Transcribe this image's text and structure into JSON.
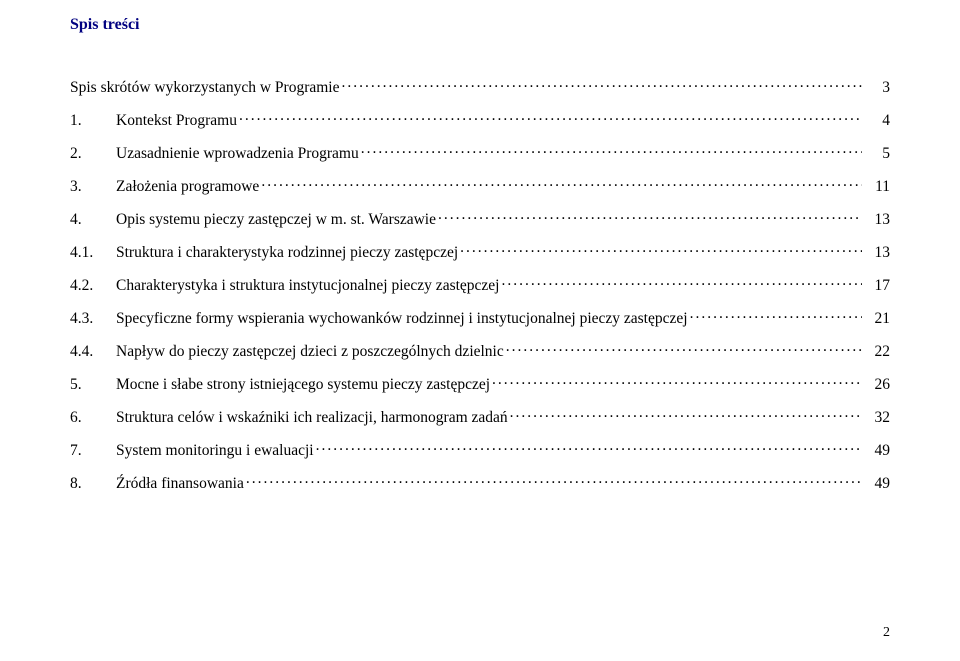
{
  "title": "Spis treści",
  "page_number": "2",
  "colors": {
    "title": "#000080",
    "text": "#000000",
    "background": "#ffffff"
  },
  "typography": {
    "family": "Times New Roman",
    "title_fontsize_pt": 12,
    "body_fontsize_pt": 12,
    "title_weight": "bold"
  },
  "toc": {
    "entries": [
      {
        "num": "",
        "text": "Spis skrótów wykorzystanych w Programie",
        "page": "3",
        "indent": 0,
        "unnumbered": true
      },
      {
        "num": "1.",
        "text": "Kontekst Programu",
        "page": "4",
        "indent": 0
      },
      {
        "num": "2.",
        "text": "Uzasadnienie wprowadzenia Programu",
        "page": "5",
        "indent": 0
      },
      {
        "num": "3.",
        "text": "Założenia programowe",
        "page": "11",
        "indent": 0
      },
      {
        "num": "4.",
        "text": "Opis systemu pieczy zastępczej w m. st. Warszawie",
        "page": "13",
        "indent": 0
      },
      {
        "num": "4.1.",
        "text": "Struktura i charakterystyka rodzinnej pieczy zastępczej",
        "page": "13",
        "indent": 1
      },
      {
        "num": "4.2.",
        "text": "Charakterystyka i struktura instytucjonalnej pieczy zastępczej",
        "page": "17",
        "indent": 1
      },
      {
        "num": "4.3.",
        "text": "Specyficzne formy wspierania wychowanków rodzinnej i instytucjonalnej pieczy zastępczej",
        "page": "21",
        "indent": 1
      },
      {
        "num": "4.4.",
        "text": "Napływ do pieczy zastępczej dzieci z poszczególnych dzielnic",
        "page": "22",
        "indent": 1
      },
      {
        "num": "5.",
        "text": "Mocne i słabe strony istniejącego systemu pieczy zastępczej",
        "page": "26",
        "indent": 0
      },
      {
        "num": "6.",
        "text": "Struktura celów i wskaźniki ich realizacji, harmonogram zadań",
        "page": "32",
        "indent": 0
      },
      {
        "num": "7.",
        "text": "System monitoringu i ewaluacji",
        "page": "49",
        "indent": 0
      },
      {
        "num": "8.",
        "text": "Źródła finansowania",
        "page": "49",
        "indent": 0
      }
    ]
  }
}
